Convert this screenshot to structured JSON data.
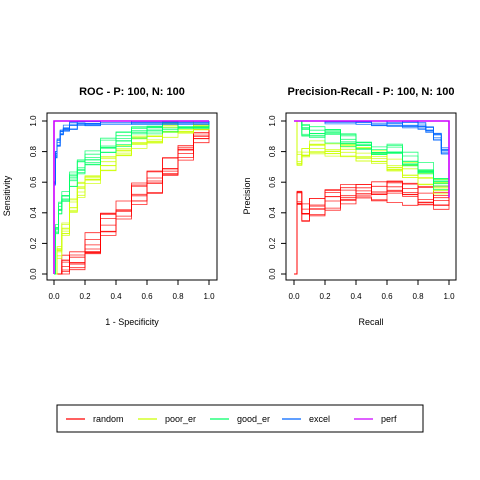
{
  "colors": {
    "random": "#ff0000",
    "poor_er": "#ccff00",
    "good_er": "#00ff66",
    "excel": "#0066ff",
    "perf": "#cc00ff"
  },
  "chart_data": [
    {
      "type": "line",
      "title": "ROC - P: 100, N: 100",
      "xlabel": "1 - Specificity",
      "ylabel": "Sensitivity",
      "xlim": [
        0,
        1
      ],
      "ylim": [
        0,
        1
      ],
      "xticks": [
        "0.0",
        "0.2",
        "0.4",
        "0.6",
        "0.8",
        "1.0"
      ],
      "yticks": [
        "0.0",
        "0.2",
        "0.4",
        "0.6",
        "0.8",
        "1.0"
      ],
      "grid": false,
      "series": [
        {
          "name": "random",
          "color": "#ff0000",
          "x": [
            0,
            0.05,
            0.1,
            0.2,
            0.3,
            0.4,
            0.5,
            0.6,
            0.7,
            0.8,
            0.9,
            1.0
          ],
          "y": [
            0,
            0.05,
            0.1,
            0.2,
            0.32,
            0.42,
            0.52,
            0.6,
            0.7,
            0.8,
            0.9,
            1.0
          ]
        },
        {
          "name": "poor_er",
          "color": "#ccff00",
          "x": [
            0,
            0.02,
            0.05,
            0.1,
            0.15,
            0.2,
            0.3,
            0.4,
            0.5,
            0.6,
            0.7,
            0.8,
            0.9,
            1.0
          ],
          "y": [
            0,
            0.15,
            0.3,
            0.45,
            0.55,
            0.62,
            0.72,
            0.8,
            0.86,
            0.9,
            0.94,
            0.97,
            0.99,
            1.0
          ]
        },
        {
          "name": "good_er",
          "color": "#00ff66",
          "x": [
            0,
            0.01,
            0.03,
            0.05,
            0.1,
            0.15,
            0.2,
            0.3,
            0.4,
            0.5,
            0.6,
            0.7,
            0.8,
            1.0
          ],
          "y": [
            0,
            0.3,
            0.42,
            0.5,
            0.62,
            0.7,
            0.76,
            0.84,
            0.88,
            0.92,
            0.95,
            0.97,
            0.99,
            1.0
          ]
        },
        {
          "name": "excel",
          "color": "#0066ff",
          "x": [
            0,
            0.0,
            0.01,
            0.02,
            0.04,
            0.06,
            0.1,
            0.15,
            0.2,
            0.3,
            0.5,
            1.0
          ],
          "y": [
            0,
            0.6,
            0.78,
            0.86,
            0.92,
            0.95,
            0.97,
            0.98,
            0.99,
            1.0,
            1.0,
            1.0
          ]
        },
        {
          "name": "perf",
          "color": "#cc00ff",
          "x": [
            0,
            0,
            1
          ],
          "y": [
            0,
            1,
            1
          ]
        }
      ]
    },
    {
      "type": "line",
      "title": "Precision-Recall - P: 100, N: 100",
      "xlabel": "Recall",
      "ylabel": "Precision",
      "xlim": [
        0,
        1
      ],
      "ylim": [
        0,
        1
      ],
      "xticks": [
        "0.0",
        "0.2",
        "0.4",
        "0.6",
        "0.8",
        "1.0"
      ],
      "yticks": [
        "0.0",
        "0.2",
        "0.4",
        "0.6",
        "0.8",
        "1.0"
      ],
      "grid": false,
      "series": [
        {
          "name": "random",
          "color": "#ff0000",
          "x": [
            0,
            0.02,
            0.05,
            0.1,
            0.2,
            0.3,
            0.4,
            0.5,
            0.6,
            0.7,
            0.8,
            0.9,
            1.0
          ],
          "y": [
            0,
            0.5,
            0.4,
            0.45,
            0.48,
            0.52,
            0.53,
            0.54,
            0.53,
            0.52,
            0.51,
            0.5,
            0.5
          ]
        },
        {
          "name": "poor_er",
          "color": "#ccff00",
          "x": [
            0,
            0.02,
            0.05,
            0.1,
            0.2,
            0.3,
            0.4,
            0.5,
            0.6,
            0.7,
            0.8,
            0.9,
            1.0
          ],
          "y": [
            1.0,
            0.75,
            0.8,
            0.83,
            0.82,
            0.8,
            0.78,
            0.76,
            0.72,
            0.68,
            0.63,
            0.57,
            0.5
          ]
        },
        {
          "name": "good_er",
          "color": "#00ff66",
          "x": [
            0,
            0.05,
            0.1,
            0.2,
            0.3,
            0.4,
            0.5,
            0.6,
            0.7,
            0.8,
            0.9,
            1.0
          ],
          "y": [
            1.0,
            0.95,
            0.93,
            0.9,
            0.88,
            0.86,
            0.83,
            0.8,
            0.75,
            0.68,
            0.6,
            0.5
          ]
        },
        {
          "name": "excel",
          "color": "#0066ff",
          "x": [
            0,
            0.2,
            0.4,
            0.5,
            0.6,
            0.7,
            0.8,
            0.85,
            0.9,
            0.95,
            1.0
          ],
          "y": [
            1.0,
            1.0,
            1.0,
            0.99,
            0.99,
            0.98,
            0.97,
            0.95,
            0.9,
            0.8,
            0.5
          ]
        },
        {
          "name": "perf",
          "color": "#cc00ff",
          "x": [
            0,
            1,
            1
          ],
          "y": [
            1,
            1,
            0.5
          ]
        }
      ]
    }
  ],
  "legend": {
    "position": "bottom",
    "entries": [
      {
        "label": "random",
        "color": "#ff0000"
      },
      {
        "label": "poor_er",
        "color": "#ccff00"
      },
      {
        "label": "good_er",
        "color": "#00ff66"
      },
      {
        "label": "excel",
        "color": "#0066ff"
      },
      {
        "label": "perf",
        "color": "#cc00ff"
      }
    ]
  }
}
